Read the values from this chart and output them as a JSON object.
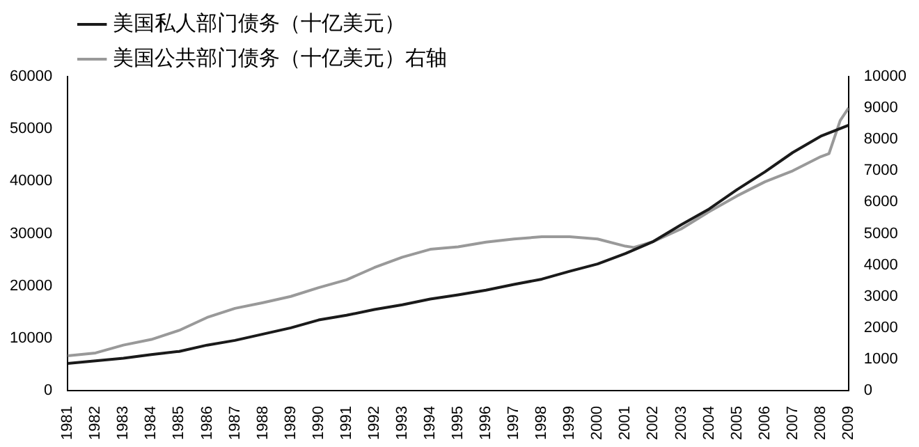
{
  "chart_data": {
    "type": "line",
    "xlim": [
      1981,
      2009
    ],
    "xticks": [
      1981,
      1982,
      1983,
      1984,
      1985,
      1986,
      1987,
      1988,
      1989,
      1990,
      1991,
      1992,
      1993,
      1994,
      1995,
      1996,
      1997,
      1998,
      1999,
      2000,
      2001,
      2002,
      2003,
      2004,
      2005,
      2006,
      2007,
      2008,
      2009
    ],
    "ylim": [
      0,
      60000
    ],
    "yticks": [
      0,
      10000,
      20000,
      30000,
      40000,
      50000,
      60000
    ],
    "y2lim": [
      0,
      10000
    ],
    "y2ticks": [
      0,
      1000,
      2000,
      3000,
      4000,
      5000,
      6000,
      7000,
      8000,
      9000,
      10000
    ],
    "legend": "top",
    "grid": false,
    "marker": "none",
    "series": [
      {
        "name": "美国私人部门债务（十亿美元）",
        "color": "#1a1a1a",
        "x": [
          1981,
          1982,
          1983,
          1984,
          1985,
          1986,
          1987,
          1988,
          1989,
          1990,
          1991,
          1992,
          1993,
          1994,
          1995,
          1996,
          1997,
          1998,
          1999,
          2000,
          2001,
          2002,
          2003,
          2004,
          2005,
          2006,
          2007,
          2008,
          2009
        ],
        "values": [
          5200,
          5700,
          6200,
          6900,
          7500,
          8700,
          9600,
          10800,
          12000,
          13500,
          14400,
          15500,
          16400,
          17500,
          18300,
          19200,
          20300,
          21300,
          22800,
          24200,
          26200,
          28500,
          31700,
          34700,
          38400,
          41800,
          45500,
          48600,
          50700
        ]
      },
      {
        "name": "美国公共部门债务（十亿美元）右轴",
        "color": "#999999",
        "axis": "y2",
        "x": [
          1981,
          1982,
          1983,
          1984,
          1985,
          1986,
          1987,
          1988,
          1989,
          1990,
          1991,
          1992,
          1993,
          1994,
          1995,
          1996,
          1997,
          1998,
          1999,
          2000,
          2001,
          2001.3,
          2002,
          2003,
          2004,
          2005,
          2006,
          2007,
          2008,
          2008.3,
          2008.7,
          2009
        ],
        "values": [
          1110,
          1200,
          1450,
          1630,
          1920,
          2330,
          2620,
          2800,
          3000,
          3280,
          3530,
          3920,
          4250,
          4500,
          4580,
          4730,
          4830,
          4900,
          4900,
          4830,
          4600,
          4560,
          4750,
          5150,
          5700,
          6200,
          6650,
          7000,
          7450,
          7550,
          8600,
          9000
        ]
      }
    ]
  }
}
